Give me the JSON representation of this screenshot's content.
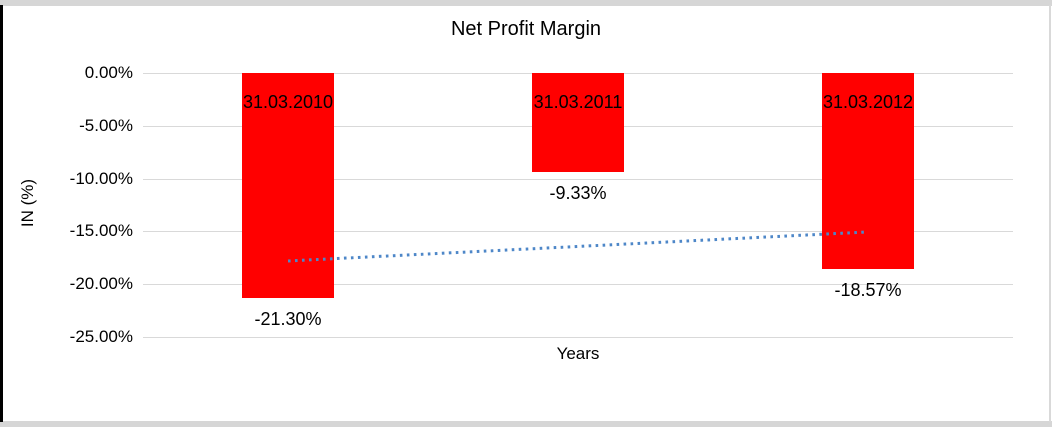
{
  "window": {
    "background": "#FFFFFF",
    "frame_band_color": "#D6D6D6",
    "left_edge_color": "#000000",
    "right_edge_color": "#D9D9D9"
  },
  "chart_data": {
    "type": "bar",
    "title": "Net Profit Margin",
    "xlabel": "Years",
    "ylabel": "IN (%)",
    "categories": [
      "31.03.2010",
      "31.03.2011",
      "31.03.2012"
    ],
    "series": [
      {
        "name": "Net Profit Margin",
        "values": [
          -21.3,
          -9.33,
          -18.57
        ],
        "color": "#FF0000"
      }
    ],
    "data_labels": [
      "-21.30%",
      "-9.33%",
      "-18.57%"
    ],
    "y_ticks": [
      "0.00%",
      "-5.00%",
      "-10.00%",
      "-15.00%",
      "-20.00%",
      "-25.00%"
    ],
    "y_tick_values": [
      0,
      -5,
      -10,
      -15,
      -20,
      -25
    ],
    "ylim": [
      -25,
      0
    ],
    "grid": true,
    "gridline_color": "#D9D9D9",
    "text_color": "#000000",
    "trendline": {
      "type": "linear",
      "style": "dotted",
      "color": "#4E87C8",
      "start_value": -17.8,
      "end_value": -15.05
    }
  }
}
